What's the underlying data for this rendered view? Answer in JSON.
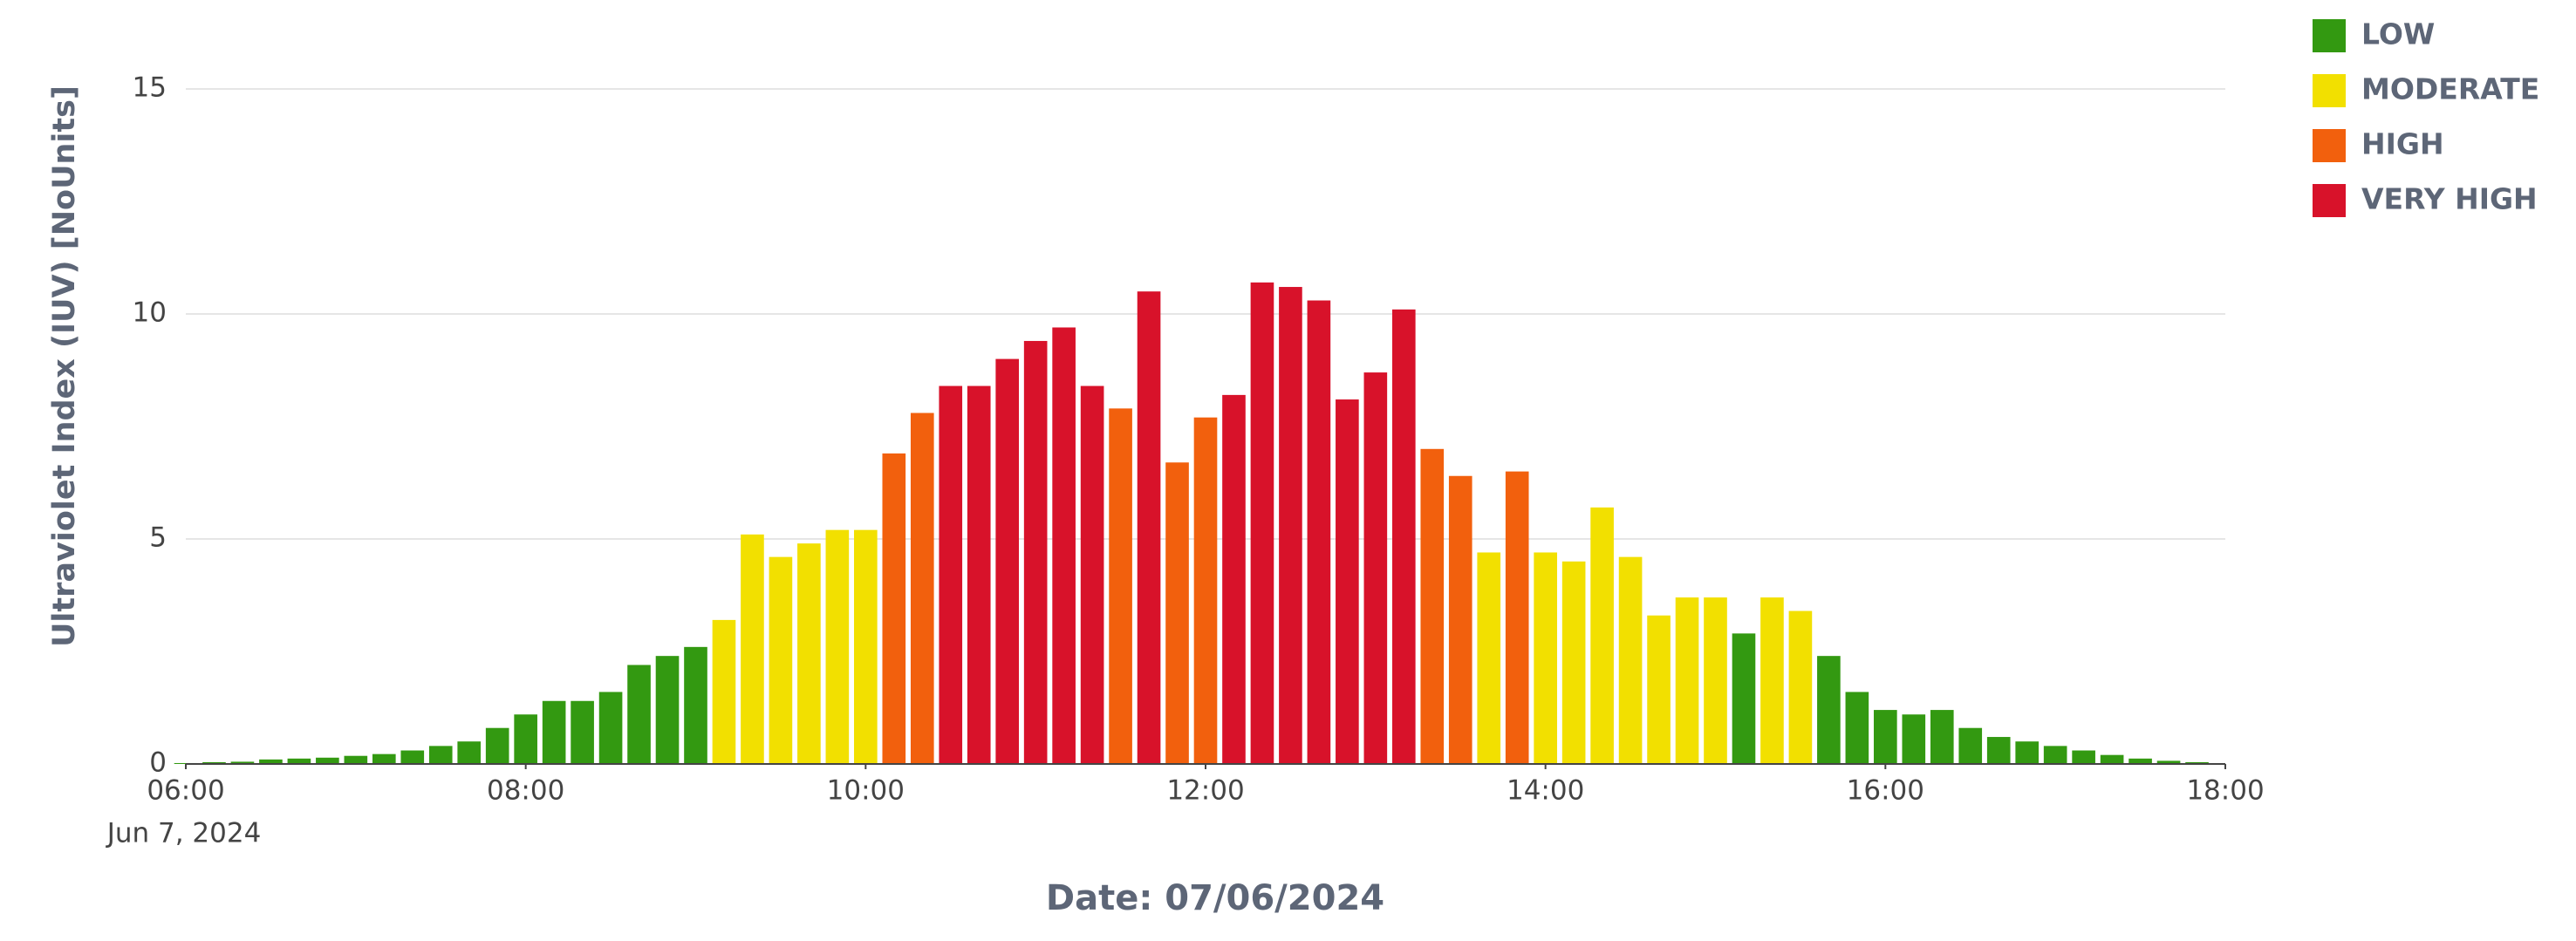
{
  "chart_data": {
    "type": "bar",
    "ylabel": "Ultraviolet Index (IUV) [NoUnits]",
    "xlabel": "Date: 07/06/2024",
    "x_date_label": "Jun 7, 2024",
    "x": [
      "06:00",
      "06:10",
      "06:20",
      "06:30",
      "06:40",
      "06:50",
      "07:00",
      "07:10",
      "07:20",
      "07:30",
      "07:40",
      "07:50",
      "08:00",
      "08:10",
      "08:20",
      "08:30",
      "08:40",
      "08:50",
      "09:00",
      "09:10",
      "09:20",
      "09:30",
      "09:40",
      "09:50",
      "10:00",
      "10:10",
      "10:20",
      "10:30",
      "10:40",
      "10:50",
      "11:00",
      "11:10",
      "11:20",
      "11:30",
      "11:40",
      "11:50",
      "12:00",
      "12:10",
      "12:20",
      "12:30",
      "12:40",
      "12:50",
      "13:00",
      "13:10",
      "13:20",
      "13:30",
      "13:40",
      "13:50",
      "14:00",
      "14:10",
      "14:20",
      "14:30",
      "14:40",
      "14:50",
      "15:00",
      "15:10",
      "15:20",
      "15:30",
      "15:40",
      "15:50",
      "16:00",
      "16:10",
      "16:20",
      "16:30",
      "16:40",
      "16:50",
      "17:00",
      "17:10",
      "17:20",
      "17:30",
      "17:40",
      "17:50"
    ],
    "xlim": [
      "06:00",
      "18:00"
    ],
    "xticks": [
      "06:00",
      "08:00",
      "10:00",
      "12:00",
      "14:00",
      "16:00",
      "18:00"
    ],
    "ylim": [
      0,
      15
    ],
    "yticks": [
      0,
      5,
      10,
      15
    ],
    "grid": true,
    "legend": "top-right",
    "series": [
      {
        "name": "LOW",
        "color": "#339911",
        "values": [
          0.02,
          0.04,
          0.05,
          0.1,
          0.12,
          0.14,
          0.18,
          0.22,
          0.3,
          0.4,
          0.5,
          0.8,
          1.1,
          1.4,
          1.4,
          1.6,
          2.2,
          2.4,
          2.6,
          null,
          null,
          null,
          null,
          null,
          null,
          null,
          null,
          null,
          null,
          null,
          null,
          null,
          null,
          null,
          null,
          null,
          null,
          null,
          null,
          null,
          null,
          null,
          null,
          null,
          null,
          null,
          null,
          null,
          null,
          null,
          null,
          null,
          null,
          null,
          null,
          2.9,
          null,
          null,
          2.4,
          1.6,
          1.2,
          1.1,
          1.2,
          0.8,
          0.6,
          0.5,
          0.4,
          0.3,
          0.2,
          0.12,
          0.07,
          0.04
        ]
      },
      {
        "name": "MODERATE",
        "color": "#f2e000",
        "values": [
          null,
          null,
          null,
          null,
          null,
          null,
          null,
          null,
          null,
          null,
          null,
          null,
          null,
          null,
          null,
          null,
          null,
          null,
          null,
          3.2,
          5.1,
          4.6,
          4.9,
          5.2,
          5.2,
          null,
          null,
          null,
          null,
          null,
          null,
          null,
          null,
          null,
          null,
          null,
          null,
          null,
          null,
          null,
          null,
          null,
          null,
          null,
          null,
          null,
          4.7,
          null,
          4.7,
          4.5,
          5.7,
          4.6,
          3.3,
          3.7,
          3.7,
          null,
          3.7,
          3.4,
          null,
          null,
          null,
          null,
          null,
          null,
          null,
          null,
          null,
          null,
          null,
          null,
          null,
          null
        ]
      },
      {
        "name": "HIGH",
        "color": "#f2600d",
        "values": [
          null,
          null,
          null,
          null,
          null,
          null,
          null,
          null,
          null,
          null,
          null,
          null,
          null,
          null,
          null,
          null,
          null,
          null,
          null,
          null,
          null,
          null,
          null,
          null,
          null,
          6.9,
          7.8,
          null,
          null,
          null,
          null,
          null,
          null,
          7.9,
          null,
          6.7,
          7.7,
          null,
          null,
          null,
          null,
          null,
          null,
          null,
          7.0,
          6.4,
          null,
          6.5,
          null,
          null,
          null,
          null,
          null,
          null,
          null,
          null,
          null,
          null,
          null,
          null,
          null,
          null,
          null,
          null,
          null,
          null,
          null,
          null,
          null,
          null,
          null,
          null
        ]
      },
      {
        "name": "VERY HIGH",
        "color": "#d8122a",
        "values": [
          null,
          null,
          null,
          null,
          null,
          null,
          null,
          null,
          null,
          null,
          null,
          null,
          null,
          null,
          null,
          null,
          null,
          null,
          null,
          null,
          null,
          null,
          null,
          null,
          null,
          null,
          null,
          8.4,
          8.4,
          9.0,
          9.4,
          9.7,
          8.4,
          null,
          10.5,
          null,
          null,
          8.2,
          10.7,
          10.6,
          10.3,
          8.1,
          8.7,
          10.1,
          null,
          null,
          null,
          null,
          null,
          null,
          null,
          null,
          null,
          null,
          null,
          null,
          null,
          null,
          null,
          null,
          null,
          null,
          null,
          null,
          null,
          null,
          null,
          null,
          null,
          null,
          null,
          null
        ]
      }
    ]
  }
}
